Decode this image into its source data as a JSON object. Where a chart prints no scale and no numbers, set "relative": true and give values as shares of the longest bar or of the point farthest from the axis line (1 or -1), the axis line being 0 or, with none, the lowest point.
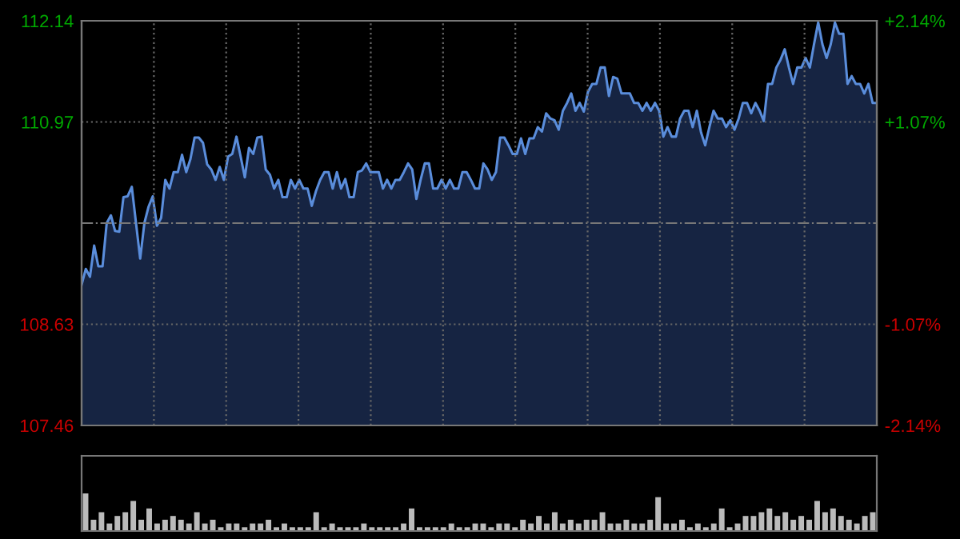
{
  "chart_data": [
    {
      "type": "area",
      "categories": [
        null,
        null,
        null,
        null,
        null,
        null,
        null,
        null,
        null,
        null,
        null,
        null,
        null,
        null,
        null,
        null,
        null,
        null,
        null,
        null,
        null,
        null,
        null,
        null,
        null,
        null,
        null,
        null,
        null,
        null,
        null,
        null,
        null,
        null,
        null,
        null,
        null,
        null,
        null,
        null,
        null,
        null,
        null,
        null,
        null,
        null,
        null,
        null,
        null,
        null,
        null,
        null,
        null,
        null,
        null,
        null,
        null,
        null,
        null,
        null,
        null,
        null,
        null,
        null,
        null,
        null,
        null,
        null,
        null,
        null,
        null,
        null,
        null,
        null,
        null,
        null,
        null,
        null,
        null,
        null,
        null,
        null,
        null,
        null,
        null,
        null,
        null,
        null,
        null,
        null,
        null,
        null,
        null,
        null,
        null,
        null,
        null,
        null,
        null,
        null,
        null,
        null,
        null,
        null,
        null,
        null,
        null,
        null,
        null,
        null,
        null,
        null,
        null,
        null,
        null,
        null,
        null,
        null,
        null,
        null,
        null,
        null,
        null,
        null,
        null,
        null,
        null,
        null,
        null,
        null,
        null,
        null,
        null,
        null,
        null,
        null,
        null,
        null,
        null,
        null,
        null,
        null,
        null,
        null,
        null,
        null,
        null,
        null,
        null,
        null,
        null,
        null,
        null,
        null,
        null,
        null,
        null,
        null,
        null,
        null,
        null,
        null,
        null,
        null,
        null,
        null,
        null,
        null,
        null,
        null,
        null,
        null,
        null,
        null,
        null,
        null,
        null,
        null,
        null,
        null,
        null,
        null,
        null,
        null,
        null,
        null,
        null,
        null,
        null,
        null,
        null
      ],
      "series": [
        {
          "color": "#5a8ddb",
          "values": [
            109.09,
            109.27,
            109.18,
            109.54,
            109.3,
            109.3,
            109.8,
            109.89,
            109.71,
            109.7,
            110.1,
            110.11,
            110.22,
            109.8,
            109.39,
            109.8,
            109.99,
            110.11,
            109.77,
            109.86,
            110.3,
            110.2,
            110.39,
            110.39,
            110.59,
            110.39,
            110.54,
            110.79,
            110.79,
            110.73,
            110.48,
            110.42,
            110.3,
            110.45,
            110.3,
            110.57,
            110.6,
            110.8,
            110.57,
            110.33,
            110.67,
            110.6,
            110.79,
            110.8,
            110.42,
            110.36,
            110.2,
            110.3,
            110.1,
            110.1,
            110.3,
            110.2,
            110.3,
            110.2,
            110.2,
            110.0,
            110.17,
            110.3,
            110.39,
            110.39,
            110.2,
            110.39,
            110.2,
            110.31,
            110.1,
            110.1,
            110.39,
            110.41,
            110.49,
            110.39,
            110.39,
            110.39,
            110.2,
            110.3,
            110.2,
            110.3,
            110.3,
            110.39,
            110.49,
            110.42,
            110.08,
            110.3,
            110.49,
            110.49,
            110.2,
            110.2,
            110.3,
            110.2,
            110.3,
            110.2,
            110.2,
            110.39,
            110.39,
            110.3,
            110.2,
            110.2,
            110.49,
            110.42,
            110.3,
            110.39,
            110.79,
            110.79,
            110.7,
            110.6,
            110.6,
            110.78,
            110.6,
            110.78,
            110.78,
            110.91,
            110.86,
            111.07,
            111.01,
            110.99,
            110.88,
            111.1,
            111.19,
            111.3,
            111.1,
            111.19,
            111.09,
            111.32,
            111.41,
            111.41,
            111.6,
            111.6,
            111.27,
            111.49,
            111.47,
            111.3,
            111.3,
            111.3,
            111.19,
            111.19,
            111.1,
            111.19,
            111.1,
            111.19,
            111.1,
            110.8,
            110.91,
            110.8,
            110.8,
            111.01,
            111.1,
            111.1,
            110.91,
            111.1,
            110.85,
            110.7,
            110.91,
            111.1,
            111.01,
            111.01,
            110.91,
            110.99,
            110.88,
            111.01,
            111.19,
            111.19,
            111.07,
            111.19,
            111.1,
            110.98,
            111.41,
            111.41,
            111.6,
            111.69,
            111.81,
            111.6,
            111.41,
            111.6,
            111.6,
            111.71,
            111.6,
            111.87,
            112.12,
            111.87,
            111.71,
            111.87,
            112.12,
            111.99,
            111.99,
            111.41,
            111.5,
            111.41,
            111.41,
            111.3,
            111.41,
            111.19,
            111.19
          ]
        }
      ],
      "ylim": [
        107.46,
        112.14
      ],
      "yticks": [
        107.46,
        108.63,
        110.97,
        112.14
      ],
      "y2lim": [
        -2.14,
        2.14
      ],
      "y2ticks": [
        {
          "value": -2.14,
          "label": "-2.14%"
        },
        {
          "value": -1.07,
          "label": "-1.07%"
        },
        {
          "value": 1.07,
          "label": "+1.07%"
        },
        {
          "value": 2.14,
          "label": "+2.14%"
        }
      ],
      "ref_lines": [
        {
          "axis": "y",
          "value": 109.8,
          "color": "#777777",
          "line_style": "dashdot"
        }
      ],
      "grid": true
    },
    {
      "type": "bar",
      "relative": true,
      "color": "#bbbbbb",
      "categories": [
        null,
        null,
        null,
        null,
        null,
        null,
        null,
        null,
        null,
        null,
        null,
        null,
        null,
        null,
        null,
        null,
        null,
        null,
        null,
        null,
        null,
        null,
        null,
        null,
        null,
        null,
        null,
        null,
        null,
        null,
        null,
        null,
        null,
        null,
        null,
        null,
        null,
        null,
        null,
        null,
        null,
        null,
        null,
        null,
        null,
        null,
        null,
        null,
        null,
        null,
        null,
        null,
        null,
        null,
        null,
        null,
        null,
        null,
        null,
        null,
        null,
        null,
        null,
        null,
        null,
        null,
        null,
        null,
        null,
        null,
        null,
        null,
        null,
        null,
        null,
        null,
        null,
        null,
        null,
        null,
        null,
        null,
        null,
        null,
        null,
        null,
        null,
        null,
        null,
        null,
        null,
        null,
        null,
        null,
        null,
        null,
        null,
        null,
        null,
        null
      ],
      "values": [
        1,
        0.3,
        0.5,
        0.2,
        0.4,
        0.5,
        0.8,
        0.3,
        0.6,
        0.2,
        0.3,
        0.4,
        0.3,
        0.2,
        0.5,
        0.2,
        0.3,
        0.1,
        0.2,
        0.2,
        0.1,
        0.2,
        0.2,
        0.3,
        0.1,
        0.2,
        0.1,
        0.1,
        0.1,
        0.5,
        0.1,
        0.2,
        0.1,
        0.1,
        0.1,
        0.2,
        0.1,
        0.1,
        0.1,
        0.1,
        0.2,
        0.6,
        0.1,
        0.1,
        0.1,
        0.1,
        0.2,
        0.1,
        0.1,
        0.2,
        0.2,
        0.1,
        0.2,
        0.2,
        0.1,
        0.3,
        0.2,
        0.4,
        0.2,
        0.5,
        0.2,
        0.3,
        0.2,
        0.3,
        0.3,
        0.5,
        0.2,
        0.2,
        0.3,
        0.2,
        0.2,
        0.3,
        0.9,
        0.2,
        0.2,
        0.3,
        0.1,
        0.2,
        0.1,
        0.2,
        0.6,
        0.1,
        0.2,
        0.4,
        0.4,
        0.5,
        0.6,
        0.4,
        0.5,
        0.3,
        0.4,
        0.3,
        0.8,
        0.5,
        0.6,
        0.4,
        0.3,
        0.2,
        0.4,
        0.5
      ]
    }
  ]
}
